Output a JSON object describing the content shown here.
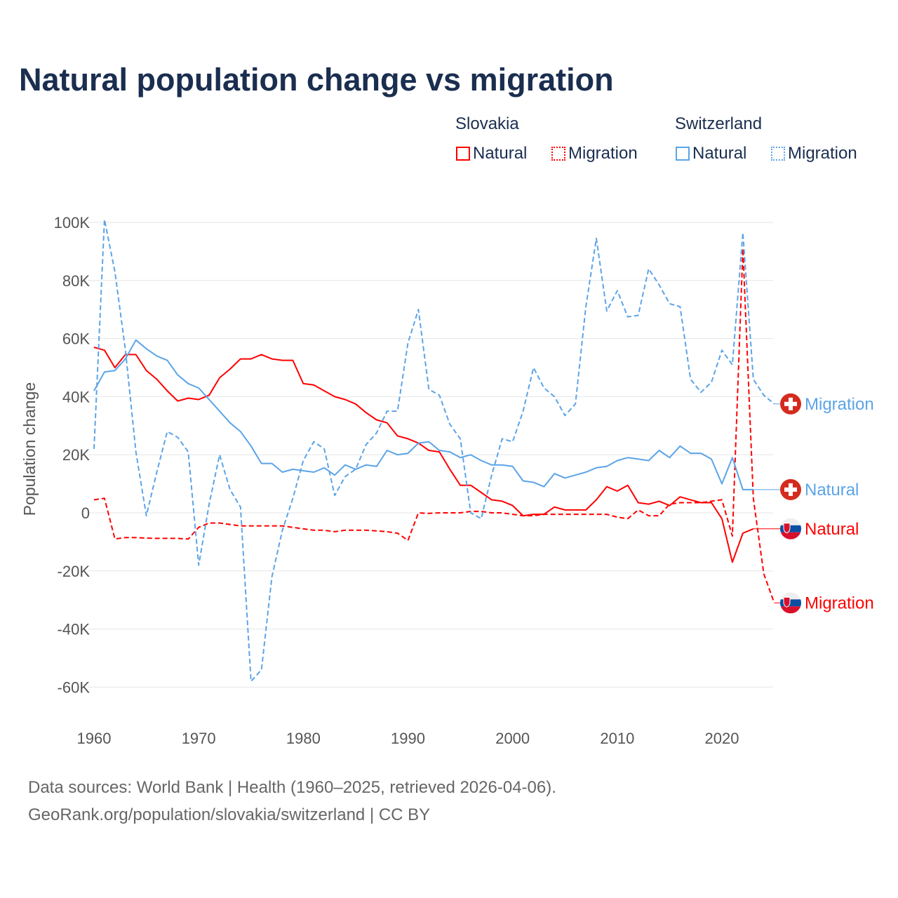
{
  "chart_data": {
    "type": "line",
    "title": "Natural population change vs migration",
    "xlabel": "",
    "ylabel": "Population change",
    "xlim": [
      1960,
      2025
    ],
    "ylim": [
      -70000,
      100000
    ],
    "x_ticks": [
      1960,
      1970,
      1980,
      1990,
      2000,
      2010,
      2020
    ],
    "x_tick_labels": [
      "1960",
      "1970",
      "1980",
      "1990",
      "2000",
      "2010",
      "2020"
    ],
    "y_ticks": [
      100000,
      80000,
      60000,
      40000,
      20000,
      0,
      -20000,
      -40000,
      -60000
    ],
    "y_tick_labels": [
      "100K",
      "80K",
      "60K",
      "40K",
      "20K",
      "0",
      "-20K",
      "-40K",
      "-60K"
    ],
    "grid": true,
    "legend_placement": "top-right",
    "x_start": 1960,
    "series": [
      {
        "name": "Slovakia Natural",
        "country": "Slovakia",
        "kind": "Natural",
        "color": "#ff0000",
        "dashed": false,
        "end_label": "Natural",
        "values": [
          57,
          56,
          50,
          54.5,
          54.5,
          49,
          46,
          42,
          38.5,
          39.5,
          39,
          40.5,
          46.5,
          49.5,
          53,
          53,
          54.5,
          53,
          52.5,
          52.5,
          44.5,
          44,
          42,
          40,
          39,
          37.5,
          34.5,
          32,
          31,
          26.5,
          25.5,
          24,
          21.5,
          21,
          15,
          9.5,
          9.5,
          7,
          4.5,
          4,
          2.5,
          -1,
          -0.5,
          -0.5,
          2,
          1,
          1,
          1,
          4.5,
          9,
          7.5,
          9.5,
          3.5,
          3,
          4,
          2.5,
          5.5,
          4.5,
          3.5,
          3.5,
          -2,
          -17,
          -7,
          -5.5,
          null,
          null
        ]
      },
      {
        "name": "Slovakia Migration",
        "country": "Slovakia",
        "kind": "Migration",
        "color": "#ff0000",
        "dashed": true,
        "end_label": "Migration",
        "values": [
          4.5,
          5,
          -9,
          -8.5,
          -8.5,
          -8.7,
          -8.8,
          -8.8,
          -8.8,
          -9,
          -5,
          -3.5,
          -3.5,
          -4,
          -4.5,
          -4.5,
          -4.5,
          -4.5,
          -4.5,
          -5,
          -5.5,
          -6,
          -6,
          -6.5,
          -6,
          -6,
          -6,
          -6.2,
          -6.5,
          -7,
          -9.5,
          0,
          -0.2,
          0,
          0,
          0,
          0.5,
          0.5,
          0,
          0,
          -0.5,
          -1,
          -1,
          -0.5,
          -0.5,
          -0.5,
          -0.5,
          -0.5,
          -0.5,
          -0.5,
          -1.5,
          -2,
          1,
          -1,
          -1,
          3,
          3.5,
          3.5,
          3.5,
          4,
          4.5,
          -8,
          91,
          5,
          -21,
          -31
        ]
      },
      {
        "name": "Switzerland Natural",
        "country": "Switzerland",
        "kind": "Natural",
        "color": "#5ba4e8",
        "dashed": false,
        "end_label": "Natural",
        "values": [
          42,
          48.5,
          49,
          53,
          59.5,
          56.5,
          54,
          52.5,
          47.5,
          44.5,
          43,
          39,
          35,
          31,
          28,
          23,
          17,
          17,
          14,
          15,
          14.5,
          14,
          15.5,
          13,
          16.5,
          15,
          16.5,
          16,
          21.5,
          20,
          20.5,
          24,
          24.5,
          21.5,
          21,
          19,
          20,
          18,
          16.5,
          16.5,
          16,
          11,
          10.5,
          9,
          13.5,
          12,
          13,
          14,
          15.5,
          16,
          18,
          19,
          18.5,
          18,
          21.5,
          19,
          23,
          20.5,
          20.5,
          18.5,
          10,
          19,
          8,
          8,
          null,
          null
        ]
      },
      {
        "name": "Switzerland Migration",
        "country": "Switzerland",
        "kind": "Migration",
        "color": "#5ba4e8",
        "dashed": true,
        "end_label": "Migration",
        "values": [
          22,
          101,
          83,
          56,
          21,
          -1,
          14,
          28,
          26,
          21,
          -18,
          3,
          20,
          8,
          2,
          -58,
          -54,
          -22,
          -6,
          5,
          18,
          24.5,
          22,
          6,
          12.5,
          15,
          23.5,
          27.5,
          35,
          35,
          58.5,
          70,
          42.5,
          40.5,
          30.5,
          25.5,
          0,
          -2,
          13,
          25.5,
          24.5,
          35,
          50,
          43,
          40,
          33.5,
          37.5,
          71,
          94.5,
          69.5,
          76.5,
          67.5,
          68,
          84,
          78.5,
          72,
          71,
          46,
          41.5,
          45,
          56,
          51,
          96.5,
          46,
          40.5,
          37.5
        ]
      }
    ],
    "value_unit": "thousands"
  },
  "legend": {
    "groups": [
      {
        "country": "Slovakia",
        "items": [
          "Natural",
          "Migration"
        ]
      },
      {
        "country": "Switzerland",
        "items": [
          "Natural",
          "Migration"
        ]
      }
    ]
  },
  "colors": {
    "slovakia": "#ff0000",
    "switzerland": "#5ba4e8",
    "title": "#1a2e4f"
  },
  "footer": {
    "line1": "Data sources: World Bank | Health (1960–2025, retrieved 2026-04-06).",
    "line2": "GeoRank.org/population/slovakia/switzerland | CC BY"
  }
}
